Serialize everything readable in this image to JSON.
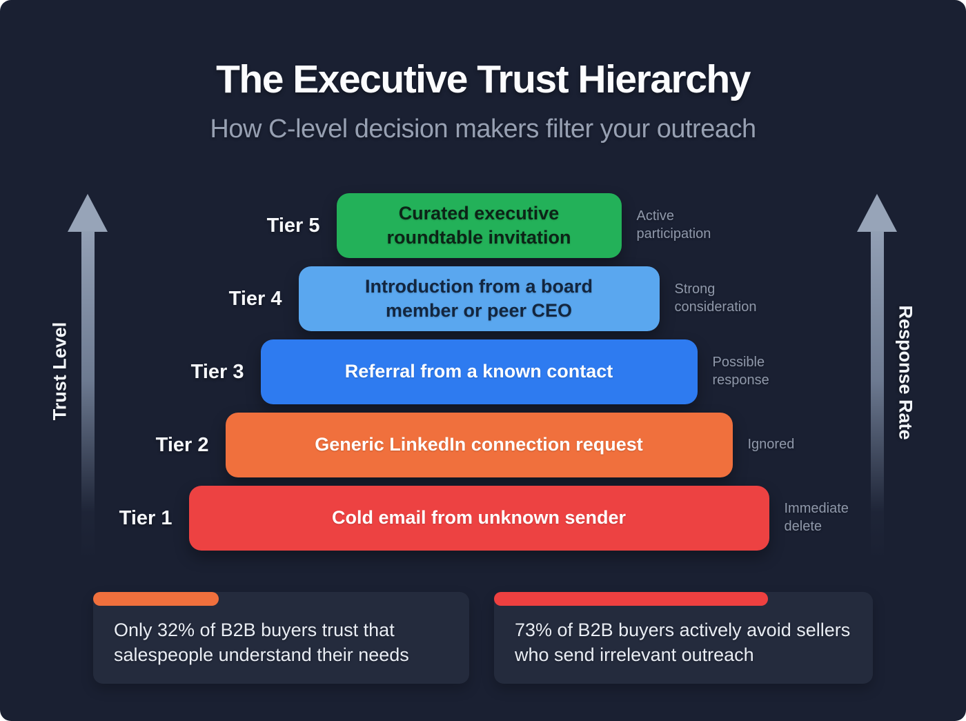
{
  "page": {
    "title": "The Executive Trust Hierarchy",
    "subtitle": "How C-level decision makers filter your outreach"
  },
  "axes": {
    "left_label": "Trust Level",
    "right_label": "Response Rate",
    "arrow_color": "#97a4b8"
  },
  "tiers": [
    {
      "label": "Tier 5",
      "text": "Curated executive roundtable invitation",
      "note": "Active participation",
      "color": "#23b159",
      "text_color": "#0c2417"
    },
    {
      "label": "Tier 4",
      "text": "Introduction from a board member or peer CEO",
      "note": "Strong consideration",
      "color": "#5aa7ef",
      "text_color": "#13263f"
    },
    {
      "label": "Tier 3",
      "text": "Referral from a known contact",
      "note": "Possible response",
      "color": "#2e7bf0",
      "text_color": "#ffffff"
    },
    {
      "label": "Tier 2",
      "text": "Generic LinkedIn connection request",
      "note": "Ignored",
      "color": "#f0703d",
      "text_color": "#ffffff"
    },
    {
      "label": "Tier 1",
      "text": "Cold email from unknown sender",
      "note": "Immediate delete",
      "color": "#ed4242",
      "text_color": "#ffffff"
    }
  ],
  "stats": [
    {
      "text": "Only 32% of B2B buyers trust that salespeople understand their needs",
      "accent_color": "#f0703d"
    },
    {
      "text": "73% of B2B buyers actively avoid sellers who send irrelevant outreach",
      "accent_color": "#ee4040"
    }
  ],
  "colors": {
    "background": "#1a2032",
    "card_background": "#242b3d",
    "note_text": "#9099ab",
    "subtitle_text": "#97a0b2"
  }
}
